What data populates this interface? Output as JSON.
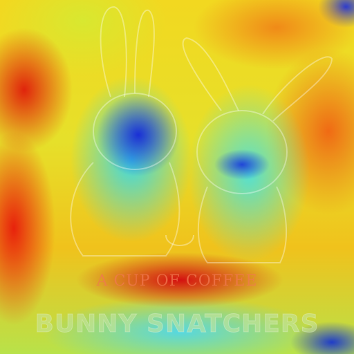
{
  "image": {
    "kind": "attention-heatmap-overlay",
    "colormap": "jet",
    "text": {
      "subtitle": "A CUP OF COFFEE",
      "brand": "BUNNY SNATCHERS"
    },
    "colors": {
      "low": "#1a2fd6",
      "mid": "#3ad8e8",
      "high": "#e8220c"
    }
  }
}
